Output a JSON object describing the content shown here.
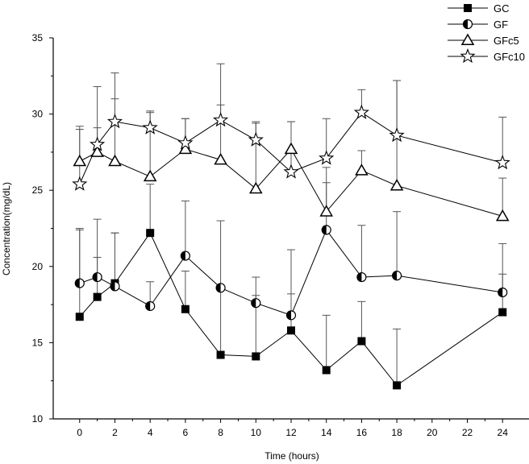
{
  "chart_data": {
    "type": "line",
    "title": "",
    "xlabel": "Time (hours)",
    "ylabel": "Concentration(mg/dL)",
    "xlim": [
      -1.5,
      25.5
    ],
    "ylim": [
      10,
      35
    ],
    "xticks": [
      0,
      2,
      4,
      6,
      8,
      10,
      12,
      14,
      16,
      18,
      20,
      22,
      24
    ],
    "yticks": [
      10,
      15,
      20,
      25,
      30,
      35
    ],
    "legend_position": "top-right",
    "grid": false,
    "series": [
      {
        "name": "GC",
        "marker": "square",
        "x": [
          0,
          1,
          2,
          4,
          6,
          8,
          10,
          12,
          14,
          16,
          18,
          24
        ],
        "y": [
          16.7,
          18.0,
          18.9,
          22.2,
          17.2,
          14.2,
          14.1,
          15.8,
          13.2,
          15.1,
          12.2,
          17.0
        ],
        "err": [
          5.7,
          2.6,
          3.3,
          3.2,
          2.5,
          4.3,
          4.0,
          2.4,
          3.6,
          2.6,
          3.7,
          2.5
        ]
      },
      {
        "name": "GF",
        "marker": "half-circle",
        "x": [
          0,
          1,
          2,
          4,
          6,
          8,
          10,
          12,
          14,
          16,
          18,
          24
        ],
        "y": [
          18.9,
          19.3,
          18.7,
          17.4,
          20.7,
          18.6,
          17.6,
          16.8,
          22.4,
          19.3,
          19.4,
          18.3
        ],
        "err": [
          3.6,
          3.8,
          3.5,
          1.6,
          3.6,
          4.4,
          1.7,
          4.3,
          4.1,
          3.4,
          4.2,
          3.2
        ]
      },
      {
        "name": "GFc5",
        "marker": "triangle",
        "x": [
          0,
          1,
          2,
          4,
          6,
          8,
          10,
          12,
          14,
          16,
          18,
          24
        ],
        "y": [
          26.9,
          27.5,
          26.9,
          25.9,
          27.7,
          27.0,
          25.1,
          27.7,
          23.6,
          26.3,
          25.3,
          23.3
        ],
        "err": [
          2.3,
          1.6,
          4.1,
          4.2,
          2.0,
          6.3,
          4.4,
          1.8,
          1.9,
          1.3,
          6.9,
          2.5
        ]
      },
      {
        "name": "GFc10",
        "marker": "star",
        "x": [
          0,
          1,
          2,
          4,
          6,
          8,
          10,
          12,
          14,
          16,
          18,
          24
        ],
        "y": [
          25.4,
          28.0,
          29.5,
          29.1,
          28.1,
          29.6,
          28.3,
          26.2,
          27.1,
          30.1,
          28.6,
          26.8
        ],
        "err": [
          3.6,
          3.8,
          3.2,
          1.1,
          1.6,
          1.0,
          1.1,
          3.3,
          2.6,
          1.5,
          3.6,
          3.0
        ]
      }
    ]
  }
}
